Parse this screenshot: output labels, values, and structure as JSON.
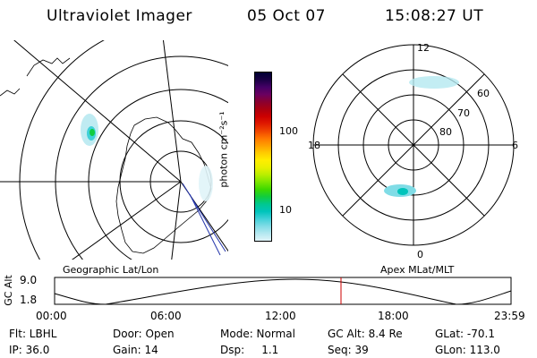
{
  "header": {
    "instrument": "Ultraviolet Imager",
    "date": "05 Oct 07",
    "time": "15:08:27 UT"
  },
  "panels": {
    "left_label": "Geographic Lat/Lon",
    "right_label": "Apex MLat/MLT"
  },
  "polar_plot": {
    "mlt_labels": {
      "top": "12",
      "bottom": "0",
      "left": "18",
      "right": "6"
    },
    "mlat_labels": [
      "60",
      "70",
      "80"
    ]
  },
  "colorbar": {
    "unit_label": "photon cm⁻²s⁻¹",
    "ticks": [
      "100",
      "10"
    ],
    "colors": [
      "#000033",
      "#1a0044",
      "#440066",
      "#6a0060",
      "#8a0030",
      "#aa0010",
      "#cc0000",
      "#e01a00",
      "#f04400",
      "#ff7700",
      "#ffa000",
      "#ffcc00",
      "#ffee00",
      "#e8f000",
      "#b8ee00",
      "#7ae600",
      "#3cd800",
      "#10cc40",
      "#00c890",
      "#00c4bb",
      "#40d0d8",
      "#80dce6",
      "#b4e8f0",
      "#e0f4f8"
    ]
  },
  "altitude_plot": {
    "ylabel": "GC Alt",
    "ymax_label": "9.0",
    "ymin_label": "1.8",
    "x_ticks": [
      "00:00",
      "06:00",
      "12:00",
      "18:00",
      "23:59"
    ],
    "marker_time": "15:08",
    "marker_color": "#cc0000"
  },
  "info": {
    "flt": "Flt: LBHL",
    "ip": "IP: 36.0",
    "door": "Door: Open",
    "gain": "Gain: 14",
    "mode": "Mode: Normal",
    "dsp": "Dsp:     1.1",
    "gc_alt": "GC Alt: 8.4 Re",
    "seq": "Seq: 39",
    "glat": "GLat: -70.1",
    "glon": "GLon: 113.0"
  }
}
